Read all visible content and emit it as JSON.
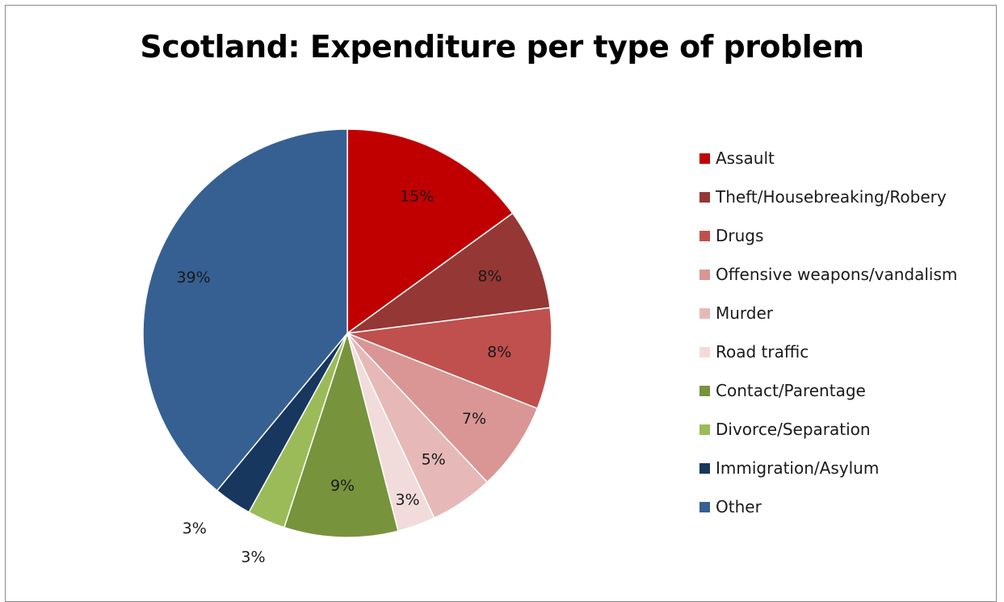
{
  "chart_data": {
    "type": "pie",
    "title": "Scotland: Expenditure per type of problem",
    "legend_position": "right",
    "slices": [
      {
        "name": "Assault",
        "value": 15,
        "label": "15%",
        "color": "#C00000"
      },
      {
        "name": "Theft/Housebreaking/Robery",
        "value": 8,
        "label": "8%",
        "color": "#953735"
      },
      {
        "name": "Drugs",
        "value": 8,
        "label": "8%",
        "color": "#C0504D"
      },
      {
        "name": "Offensive weapons/vandalism",
        "value": 7,
        "label": "7%",
        "color": "#D99694"
      },
      {
        "name": "Murder",
        "value": 5,
        "label": "5%",
        "color": "#E6B9B8"
      },
      {
        "name": "Road traffic",
        "value": 3,
        "label": "3%",
        "color": "#F2DCDB"
      },
      {
        "name": "Contact/Parentage",
        "value": 9,
        "label": "9%",
        "color": "#77933C"
      },
      {
        "name": "Divorce/Separation",
        "value": 3,
        "label": "3%",
        "color": "#9BBB59"
      },
      {
        "name": "Immigration/Asylum",
        "value": 3,
        "label": "3%",
        "color": "#17375E"
      },
      {
        "name": "Other",
        "value": 39,
        "label": "39%",
        "color": "#366092"
      }
    ]
  }
}
